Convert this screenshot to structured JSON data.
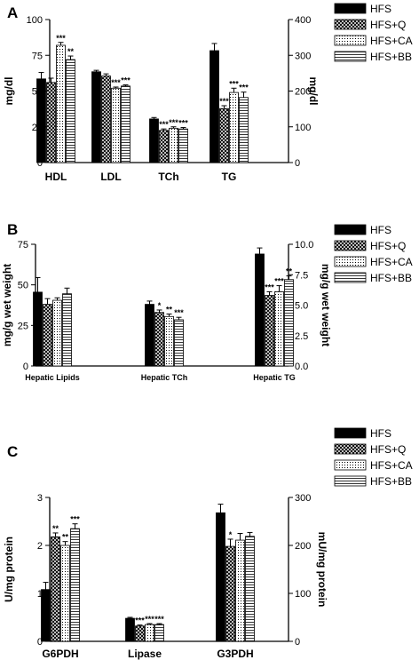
{
  "colors": {
    "ink": "#000000",
    "background": "#ffffff"
  },
  "chart_data": [
    {
      "panel": "A",
      "type": "bar",
      "categories": [
        "HDL",
        "LDL",
        "TCh",
        "TG"
      ],
      "ylabel": "mg/dl",
      "ylabel_right": "mg/dl",
      "ylim": [
        0,
        100
      ],
      "yticks": [
        "0",
        "25",
        "50",
        "75",
        "100"
      ],
      "ylim_right": [
        0,
        400
      ],
      "yticks_right": [
        "0",
        "100",
        "200",
        "300",
        "400"
      ],
      "right_axis_categories": [
        "TG"
      ],
      "legend": [
        "HFS",
        "HFS+Q",
        "HFS+CA",
        "HFS+BB"
      ],
      "legend_position": "top-right",
      "series": [
        {
          "name": "HFS",
          "values": [
            58.5,
            63.5,
            30.5,
            313
          ],
          "errors": [
            4.5,
            1.0,
            1.0,
            20
          ]
        },
        {
          "name": "HFS+Q",
          "values": [
            56,
            60.5,
            22.5,
            151
          ],
          "errors": [
            3.0,
            1.5,
            1.0,
            8
          ]
        },
        {
          "name": "HFS+CA",
          "values": [
            82,
            52,
            24,
            196
          ],
          "errors": [
            2.0,
            0.8,
            1.0,
            12
          ]
        },
        {
          "name": "HFS+BB",
          "values": [
            72,
            53.5,
            23.5,
            182
          ],
          "errors": [
            2.5,
            0.8,
            1.0,
            15
          ]
        }
      ],
      "annotations": [
        [
          "",
          "",
          "",
          ""
        ],
        [
          "",
          "",
          "***",
          "***"
        ],
        [
          "***",
          "***",
          "***",
          "***"
        ],
        [
          "**",
          "***",
          "***",
          "***"
        ]
      ]
    },
    {
      "panel": "B",
      "type": "bar",
      "categories": [
        "Hepatic Lipids",
        "Hepatic TCh",
        "Hepatic TG"
      ],
      "ylabel": "mg/g wet weight",
      "ylabel_right": "mg/g wet weight",
      "ylim": [
        0,
        75
      ],
      "yticks": [
        "0",
        "25",
        "50",
        "75"
      ],
      "ylim_right": [
        0,
        10
      ],
      "yticks_right": [
        "0.0",
        "2.5",
        "5.0",
        "7.5",
        "10.0"
      ],
      "right_axis_categories": [
        "Hepatic TG"
      ],
      "legend": [
        "HFS",
        "HFS+Q",
        "HFS+CA",
        "HFS+BB"
      ],
      "legend_position": "top-right",
      "series": [
        {
          "name": "HFS",
          "values": [
            45.5,
            38,
            9.2
          ],
          "errors": [
            9,
            2,
            0.5
          ]
        },
        {
          "name": "HFS+Q",
          "values": [
            38,
            33,
            5.8
          ],
          "errors": [
            3.5,
            1.5,
            0.3
          ]
        },
        {
          "name": "HFS+CA",
          "values": [
            40.5,
            30.5,
            6.1
          ],
          "errors": [
            1.5,
            1.5,
            0.5
          ]
        },
        {
          "name": "HFS+BB",
          "values": [
            44.5,
            28.5,
            7.1
          ],
          "errors": [
            3.5,
            1.5,
            0.3
          ]
        }
      ],
      "annotations": [
        [
          "",
          "",
          ""
        ],
        [
          "",
          "*",
          "***"
        ],
        [
          "",
          "**",
          "***"
        ],
        [
          "",
          "***",
          "**"
        ]
      ]
    },
    {
      "panel": "C",
      "type": "bar",
      "categories": [
        "G6PDH",
        "Lipase",
        "G3PDH"
      ],
      "ylabel": "U/mg protein",
      "ylabel_right": "mU/mg protein",
      "ylim": [
        0,
        3
      ],
      "yticks": [
        "0",
        "1",
        "2",
        "3"
      ],
      "ylim_right": [
        0,
        300
      ],
      "yticks_right": [
        "0",
        "100",
        "200",
        "300"
      ],
      "right_axis_categories": [
        "G3PDH"
      ],
      "legend": [
        "HFS",
        "HFS+Q",
        "HFS+CA",
        "HFS+BB"
      ],
      "legend_position": "top-right",
      "series": [
        {
          "name": "HFS",
          "values": [
            1.08,
            0.48,
            268
          ],
          "errors": [
            0.15,
            0.02,
            18
          ]
        },
        {
          "name": "HFS+Q",
          "values": [
            2.18,
            0.32,
            198
          ],
          "errors": [
            0.08,
            0.02,
            15
          ]
        },
        {
          "name": "HFS+CA",
          "values": [
            2.0,
            0.35,
            211
          ],
          "errors": [
            0.08,
            0.02,
            14
          ]
        },
        {
          "name": "HFS+BB",
          "values": [
            2.35,
            0.35,
            219
          ],
          "errors": [
            0.1,
            0.02,
            8
          ]
        }
      ],
      "annotations": [
        [
          "",
          "",
          ""
        ],
        [
          "**",
          "***",
          "*"
        ],
        [
          "**",
          "***",
          ""
        ],
        [
          "***",
          "***",
          ""
        ]
      ]
    }
  ]
}
